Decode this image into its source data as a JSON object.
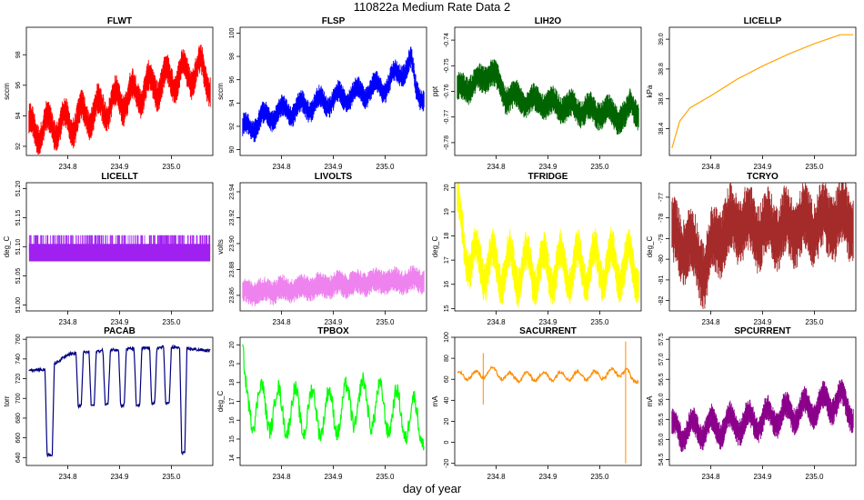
{
  "figure": {
    "title": "110822a   Medium Rate Data 2",
    "common_xlabel": "day of year"
  },
  "chart_data": [
    {
      "type": "line",
      "title": "FLWT",
      "ylabel": "sccm",
      "color": "#ff0000",
      "xlim": [
        234.72,
        235.08
      ],
      "ylim": [
        91.4,
        99.8
      ],
      "xticks": [
        234.8,
        234.9,
        235.0
      ],
      "xtick_labels": [
        "234.8",
        "234.9",
        "235.0"
      ],
      "yticks": [
        92,
        94,
        96,
        98
      ],
      "ytick_labels": [
        "92",
        "94",
        "96",
        "98"
      ],
      "trend": [
        [
          234.72,
          93.0
        ],
        [
          234.8,
          93.5
        ],
        [
          234.9,
          95.0
        ],
        [
          235.0,
          96.5
        ],
        [
          235.06,
          97.0
        ],
        [
          235.08,
          96.0
        ]
      ],
      "band": 1.5,
      "osc": [
        0.8,
        11
      ],
      "noise": true,
      "style": "band"
    },
    {
      "type": "line",
      "title": "FLSP",
      "ylabel": "sccm",
      "color": "#0000ff",
      "xlim": [
        234.72,
        235.08
      ],
      "ylim": [
        89.5,
        100.5
      ],
      "xticks": [
        234.8,
        234.9,
        235.0
      ],
      "xtick_labels": [
        "234.8",
        "234.9",
        "235.0"
      ],
      "yticks": [
        90,
        92,
        94,
        96,
        98,
        100
      ],
      "ytick_labels": [
        "90",
        "92",
        "94",
        "96",
        "98",
        "100"
      ],
      "trend": [
        [
          234.72,
          91.5
        ],
        [
          234.78,
          93.0
        ],
        [
          234.9,
          94.3
        ],
        [
          235.0,
          95.5
        ],
        [
          235.05,
          97.5
        ],
        [
          235.06,
          95.0
        ],
        [
          235.08,
          94.5
        ]
      ],
      "band": 1.4,
      "osc": [
        0.6,
        10
      ],
      "noise": true,
      "style": "band"
    },
    {
      "type": "line",
      "title": "LIH2O",
      "ylabel": "ppt",
      "color": "#006400",
      "xlim": [
        234.72,
        235.08
      ],
      "ylim": [
        -0.785,
        -0.735
      ],
      "xticks": [
        234.8,
        234.9,
        235.0
      ],
      "xtick_labels": [
        "234.8",
        "234.9",
        "235.0"
      ],
      "yticks": [
        -0.78,
        -0.77,
        -0.76,
        -0.75,
        -0.74
      ],
      "ytick_labels": [
        "-0.78",
        "-0.77",
        "-0.76",
        "-0.75",
        "-0.74"
      ],
      "trend": [
        [
          234.72,
          -0.76
        ],
        [
          234.77,
          -0.756
        ],
        [
          234.79,
          -0.752
        ],
        [
          234.82,
          -0.762
        ],
        [
          234.9,
          -0.765
        ],
        [
          235.0,
          -0.768
        ],
        [
          235.05,
          -0.77
        ],
        [
          235.06,
          -0.764
        ],
        [
          235.08,
          -0.77
        ]
      ],
      "band": 0.008,
      "osc": [
        0.002,
        10
      ],
      "noise": true,
      "style": "band"
    },
    {
      "type": "line",
      "title": "LICELLP",
      "ylabel": "kPa",
      "color": "#ffa500",
      "xlim": [
        234.72,
        235.08
      ],
      "ylim": [
        38.22,
        39.08
      ],
      "xticks": [
        234.8,
        234.9,
        235.0
      ],
      "xtick_labels": [
        "234.8",
        "234.9",
        "235.0"
      ],
      "yticks": [
        38.4,
        38.6,
        38.8,
        39.0
      ],
      "ytick_labels": [
        "38.4",
        "38.6",
        "38.8",
        "39.0"
      ],
      "trend": [
        [
          234.725,
          38.27
        ],
        [
          234.74,
          38.45
        ],
        [
          234.76,
          38.54
        ],
        [
          234.8,
          38.62
        ],
        [
          234.85,
          38.73
        ],
        [
          234.9,
          38.82
        ],
        [
          234.95,
          38.9
        ],
        [
          235.0,
          38.97
        ],
        [
          235.05,
          39.03
        ],
        [
          235.08,
          39.03
        ]
      ],
      "band": 0.0,
      "osc": [
        0.0,
        1
      ],
      "noise": false,
      "style": "line"
    },
    {
      "type": "line",
      "title": "LICELLT",
      "ylabel": "deg_C",
      "color": "#a020f0",
      "xlim": [
        234.72,
        235.08
      ],
      "ylim": [
        50.99,
        51.21
      ],
      "xticks": [
        234.8,
        234.9,
        235.0
      ],
      "xtick_labels": [
        "234.8",
        "234.9",
        "235.0"
      ],
      "yticks": [
        51.0,
        51.05,
        51.1,
        51.15,
        51.2
      ],
      "ytick_labels": [
        "51.00",
        "51.05",
        "51.10",
        "51.15",
        "51.20"
      ],
      "trend": [
        [
          234.725,
          51.09
        ],
        [
          235.075,
          51.09
        ]
      ],
      "band": 0.03,
      "osc": [
        0.0,
        1
      ],
      "noise": false,
      "style": "block",
      "spikes": 51.12
    },
    {
      "type": "line",
      "title": "LIVOLTS",
      "ylabel": "volts",
      "color": "#ee82ee",
      "xlim": [
        234.72,
        235.08
      ],
      "ylim": [
        23.848,
        23.947
      ],
      "xticks": [
        234.8,
        234.9,
        235.0
      ],
      "xtick_labels": [
        "234.8",
        "234.9",
        "235.0"
      ],
      "yticks": [
        23.86,
        23.88,
        23.9,
        23.92,
        23.94
      ],
      "ytick_labels": [
        "23.86",
        "23.88",
        "23.90",
        "23.92",
        "23.94"
      ],
      "trend": [
        [
          234.725,
          23.862
        ],
        [
          234.9,
          23.868
        ],
        [
          235.0,
          23.871
        ],
        [
          235.075,
          23.872
        ]
      ],
      "band": 0.014,
      "osc": [
        0.002,
        10
      ],
      "noise": true,
      "style": "band"
    },
    {
      "type": "line",
      "title": "TFRIDGE",
      "ylabel": "deg_C",
      "color": "#ffff00",
      "xlim": [
        234.72,
        235.08
      ],
      "ylim": [
        14.9,
        20.2
      ],
      "xticks": [
        234.8,
        234.9,
        235.0
      ],
      "xtick_labels": [
        "234.8",
        "234.9",
        "235.0"
      ],
      "yticks": [
        15,
        16,
        17,
        18,
        19,
        20
      ],
      "ytick_labels": [
        "15",
        "16",
        "17",
        "18",
        "19",
        "20"
      ],
      "trend": [
        [
          234.72,
          19.5
        ],
        [
          234.73,
          18.5
        ],
        [
          234.75,
          17.0
        ],
        [
          234.8,
          16.7
        ],
        [
          234.9,
          16.6
        ],
        [
          235.0,
          16.8
        ],
        [
          235.08,
          16.7
        ]
      ],
      "band": 1.2,
      "osc": [
        0.8,
        11
      ],
      "noise": true,
      "style": "band"
    },
    {
      "type": "line",
      "title": "TCRYO",
      "ylabel": "deg_C",
      "color": "#a52a2a",
      "xlim": [
        234.72,
        235.08
      ],
      "ylim": [
        -82.5,
        -76.3
      ],
      "xticks": [
        234.8,
        234.9,
        235.0
      ],
      "xtick_labels": [
        "234.8",
        "234.9",
        "235.0"
      ],
      "yticks": [
        -82,
        -81,
        -80,
        -79,
        -78,
        -77
      ],
      "ytick_labels": [
        "-82",
        "-81",
        "-80",
        "-79",
        "-78",
        "-77"
      ],
      "trend": [
        [
          234.72,
          -79.0
        ],
        [
          234.76,
          -79.3
        ],
        [
          234.79,
          -80.5
        ],
        [
          234.81,
          -79.0
        ],
        [
          234.85,
          -78.2
        ],
        [
          234.9,
          -78.6
        ],
        [
          235.0,
          -78.3
        ],
        [
          235.08,
          -78.0
        ]
      ],
      "band": 2.4,
      "osc": [
        0.5,
        10
      ],
      "noise": true,
      "style": "band"
    },
    {
      "type": "line",
      "title": "PACAB",
      "ylabel": "torr",
      "color": "#000080",
      "xlim": [
        234.72,
        235.08
      ],
      "ylim": [
        632,
        762
      ],
      "xticks": [
        234.8,
        234.9,
        235.0
      ],
      "xtick_labels": [
        "234.8",
        "234.9",
        "235.0"
      ],
      "yticks": [
        640,
        660,
        680,
        700,
        720,
        740,
        760
      ],
      "ytick_labels": [
        "640",
        "660",
        "680",
        "700",
        "720",
        "740",
        "760"
      ],
      "dips": [
        [
          234.76,
          234.77,
          643
        ],
        [
          234.82,
          234.826,
          692
        ],
        [
          234.845,
          234.851,
          693
        ],
        [
          234.872,
          234.878,
          694
        ],
        [
          234.902,
          234.909,
          693
        ],
        [
          234.932,
          234.939,
          693
        ],
        [
          234.962,
          234.968,
          695
        ],
        [
          234.989,
          234.996,
          695
        ],
        [
          235.02,
          235.026,
          645
        ]
      ],
      "band": 3,
      "osc": [
        0.0,
        1
      ],
      "noise": true,
      "style": "dips",
      "base": [
        [
          234.72,
          729
        ],
        [
          234.76,
          729
        ],
        [
          234.8,
          745
        ],
        [
          234.9,
          750
        ],
        [
          235.0,
          752
        ],
        [
          235.08,
          748
        ]
      ]
    },
    {
      "type": "line",
      "title": "TPBOX",
      "ylabel": "deg_C",
      "color": "#00ff00",
      "xlim": [
        234.72,
        235.08
      ],
      "ylim": [
        13.6,
        20.4
      ],
      "xticks": [
        234.8,
        234.9,
        235.0
      ],
      "xtick_labels": [
        "234.8",
        "234.9",
        "235.0"
      ],
      "yticks": [
        14,
        15,
        16,
        17,
        18,
        19,
        20
      ],
      "ytick_labels": [
        "14",
        "15",
        "16",
        "17",
        "18",
        "19",
        "20"
      ],
      "trend": [
        [
          234.722,
          20.0
        ],
        [
          234.73,
          17.0
        ],
        [
          234.8,
          16.5
        ],
        [
          234.9,
          16.4
        ],
        [
          234.95,
          17.0
        ],
        [
          235.0,
          16.6
        ],
        [
          235.08,
          15.8
        ]
      ],
      "band": 0.9,
      "osc": [
        1.2,
        11
      ],
      "noise": true,
      "style": "line"
    },
    {
      "type": "line",
      "title": "SACURRENT",
      "ylabel": "mA",
      "color": "#ff8c00",
      "xlim": [
        234.72,
        235.08
      ],
      "ylim": [
        -22,
        100
      ],
      "xticks": [
        234.8,
        234.9,
        235.0
      ],
      "xtick_labels": [
        "234.8",
        "234.9",
        "235.0"
      ],
      "yticks": [
        -20,
        0,
        20,
        40,
        60,
        80,
        100
      ],
      "ytick_labels": [
        "-20",
        "0",
        "20",
        "40",
        "60",
        "80",
        "100"
      ],
      "trend": [
        [
          234.725,
          63
        ],
        [
          234.77,
          64
        ],
        [
          234.79,
          68
        ],
        [
          234.82,
          62
        ],
        [
          234.9,
          63
        ],
        [
          235.0,
          64
        ],
        [
          235.05,
          68
        ],
        [
          235.06,
          60
        ],
        [
          235.08,
          62
        ]
      ],
      "band": 3,
      "osc": [
        4,
        11
      ],
      "noise": true,
      "style": "line",
      "vspikes": [
        [
          234.775,
          36,
          85
        ],
        [
          235.05,
          -20,
          96
        ]
      ]
    },
    {
      "type": "line",
      "title": "SPCURRENT",
      "ylabel": "mA",
      "color": "#8b008b",
      "xlim": [
        234.72,
        235.08
      ],
      "ylim": [
        54.35,
        57.55
      ],
      "xticks": [
        234.8,
        234.9,
        235.0
      ],
      "xtick_labels": [
        "234.8",
        "234.9",
        "235.0"
      ],
      "yticks": [
        54.5,
        55.0,
        55.5,
        56.0,
        56.5,
        57.0,
        57.5
      ],
      "ytick_labels": [
        "54.5",
        "55.0",
        "55.5",
        "56.0",
        "56.5",
        "57.0",
        "57.5"
      ],
      "trend": [
        [
          234.72,
          55.2
        ],
        [
          234.8,
          55.3
        ],
        [
          234.9,
          55.5
        ],
        [
          235.0,
          55.8
        ],
        [
          235.05,
          56.0
        ],
        [
          235.08,
          55.6
        ]
      ],
      "band": 0.5,
      "osc": [
        0.25,
        10
      ],
      "noise": true,
      "style": "band"
    }
  ]
}
